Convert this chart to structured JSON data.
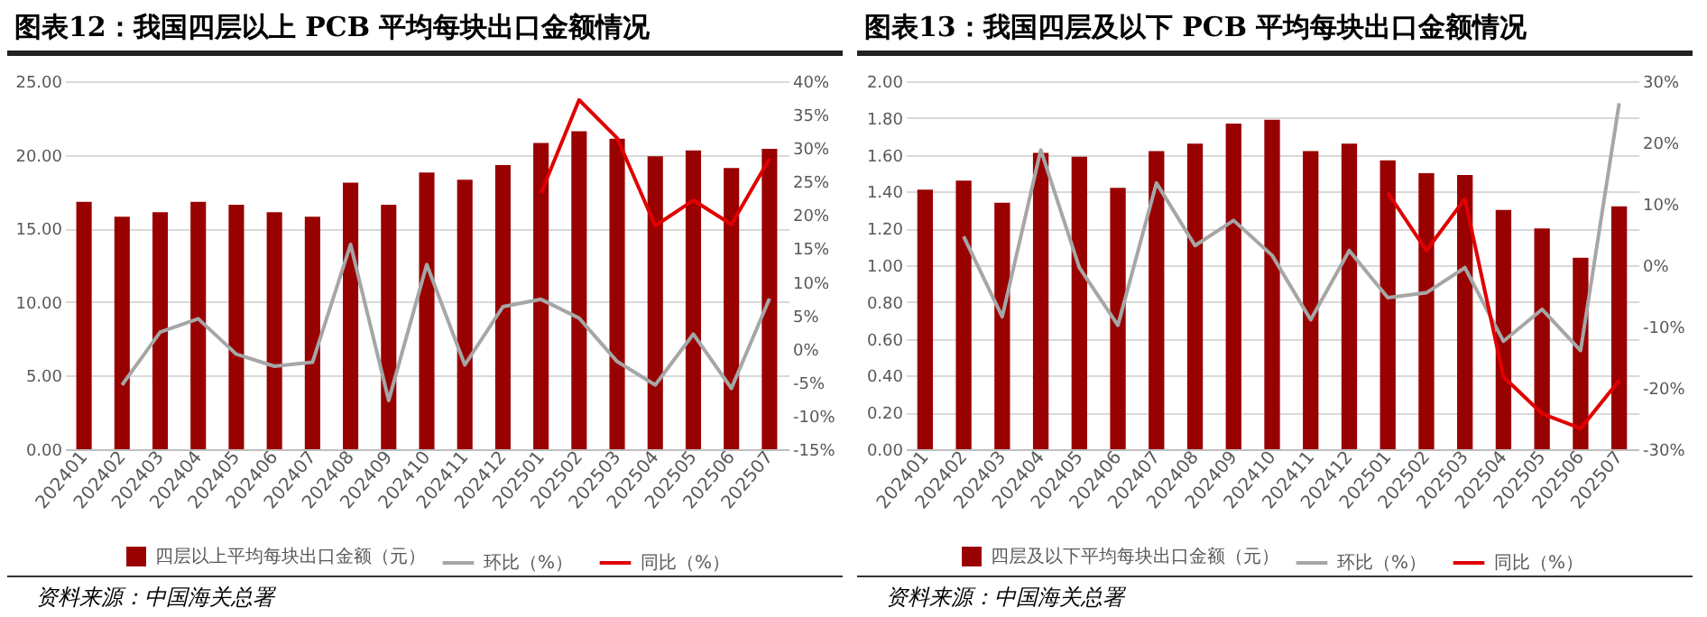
{
  "chart_data": [
    {
      "type": "bar",
      "title": "图表12：我国四层以上 PCB 平均每块出口金额情况",
      "categories": [
        "202401",
        "202402",
        "202403",
        "202404",
        "202405",
        "202406",
        "202407",
        "202408",
        "202409",
        "202410",
        "202411",
        "202412",
        "202501",
        "202502",
        "202503",
        "202504",
        "202505",
        "202506",
        "202507"
      ],
      "series": [
        {
          "name": "四层以上平均每块出口金额（元）",
          "color": "#990000",
          "values": [
            16.8,
            15.8,
            16.1,
            16.8,
            16.6,
            16.1,
            15.8,
            18.1,
            16.6,
            18.8,
            18.3,
            19.3,
            20.8,
            21.6,
            21.1,
            19.9,
            20.3,
            19.1,
            20.4
          ]
        },
        {
          "name": "环比（%）",
          "type": "line",
          "axis": "y2",
          "color": "#a6a6a6",
          "values": [
            null,
            -5.4,
            2.5,
            4.5,
            -0.8,
            -2.6,
            -2,
            15.6,
            -7.7,
            12.6,
            -2.4,
            6.3,
            7.4,
            4.6,
            -1.9,
            -5.4,
            2.2,
            -5.9,
            7.5
          ]
        },
        {
          "name": "同比（%）",
          "type": "line",
          "axis": "y2",
          "color": "#e00000",
          "values": [
            null,
            null,
            null,
            null,
            null,
            null,
            null,
            null,
            null,
            null,
            null,
            null,
            23.3,
            37.2,
            31.5,
            18.4,
            22.2,
            18.6,
            28.4
          ]
        }
      ],
      "ylim": [
        0,
        25
      ],
      "yticks": [
        {
          "value": 0,
          "label": "0.00"
        },
        {
          "value": 5,
          "label": "5.00"
        },
        {
          "value": 10,
          "label": "10.00"
        },
        {
          "value": 15,
          "label": "15.00"
        },
        {
          "value": 20,
          "label": "20.00"
        },
        {
          "value": 25,
          "label": "25.00"
        }
      ],
      "y2lim": [
        -15,
        40
      ],
      "y2ticks": [
        {
          "value": -15,
          "label": "-15%"
        },
        {
          "value": -10,
          "label": "-10%"
        },
        {
          "value": -5,
          "label": "-5%"
        },
        {
          "value": 0,
          "label": "0%"
        },
        {
          "value": 5,
          "label": "5%"
        },
        {
          "value": 10,
          "label": "10%"
        },
        {
          "value": 15,
          "label": "15%"
        },
        {
          "value": 20,
          "label": "20%"
        },
        {
          "value": 25,
          "label": "25%"
        },
        {
          "value": 30,
          "label": "30%"
        },
        {
          "value": 35,
          "label": "35%"
        },
        {
          "value": 40,
          "label": "40%"
        }
      ],
      "grid": "y",
      "legend": "bottom",
      "annotations": [
        "资料来源：中国海关总署"
      ]
    },
    {
      "type": "bar",
      "title": "图表13：我国四层及以下 PCB 平均每块出口金额情况",
      "categories": [
        "202401",
        "202402",
        "202403",
        "202404",
        "202405",
        "202406",
        "202407",
        "202408",
        "202409",
        "202410",
        "202411",
        "202412",
        "202501",
        "202502",
        "202503",
        "202504",
        "202505",
        "202506",
        "202507"
      ],
      "series": [
        {
          "name": "四层及以下平均每块出口金额（元）",
          "color": "#990000",
          "values": [
            1.41,
            1.46,
            1.34,
            1.61,
            1.59,
            1.42,
            1.62,
            1.66,
            1.77,
            1.79,
            1.62,
            1.66,
            1.57,
            1.5,
            1.49,
            1.3,
            1.2,
            1.04,
            1.32
          ]
        },
        {
          "name": "环比（%）",
          "type": "line",
          "axis": "y2",
          "color": "#a6a6a6",
          "values": [
            null,
            4.7,
            -8.4,
            18.8,
            -0.4,
            -9.8,
            13.4,
            3.2,
            7.3,
            1.6,
            -8.9,
            2.4,
            -5.3,
            -4.5,
            -0.4,
            -12.4,
            -7.2,
            -13.9,
            26.4
          ]
        },
        {
          "name": "同比（%）",
          "type": "line",
          "axis": "y2",
          "color": "#e00000",
          "values": [
            null,
            null,
            null,
            null,
            null,
            null,
            null,
            null,
            null,
            null,
            null,
            null,
            11.8,
            2.4,
            10.8,
            -18.2,
            -24.2,
            -26.6,
            -18.8
          ]
        }
      ],
      "ylim": [
        0,
        2
      ],
      "yticks": [
        {
          "value": 0,
          "label": "0.00"
        },
        {
          "value": 0.2,
          "label": "0.20"
        },
        {
          "value": 0.4,
          "label": "0.40"
        },
        {
          "value": 0.6,
          "label": "0.60"
        },
        {
          "value": 0.8,
          "label": "0.80"
        },
        {
          "value": 1,
          "label": "1.00"
        },
        {
          "value": 1.2,
          "label": "1.20"
        },
        {
          "value": 1.4,
          "label": "1.40"
        },
        {
          "value": 1.6,
          "label": "1.60"
        },
        {
          "value": 1.8,
          "label": "1.80"
        },
        {
          "value": 2,
          "label": "2.00"
        }
      ],
      "y2lim": [
        -30,
        30
      ],
      "y2ticks": [
        {
          "value": -30,
          "label": "-30%"
        },
        {
          "value": -20,
          "label": "-20%"
        },
        {
          "value": -10,
          "label": "-10%"
        },
        {
          "value": 0,
          "label": "0%"
        },
        {
          "value": 10,
          "label": "10%"
        },
        {
          "value": 20,
          "label": "20%"
        },
        {
          "value": 30,
          "label": "30%"
        }
      ],
      "grid": "y",
      "legend": "bottom",
      "annotations": [
        "资料来源：中国海关总署"
      ]
    }
  ]
}
